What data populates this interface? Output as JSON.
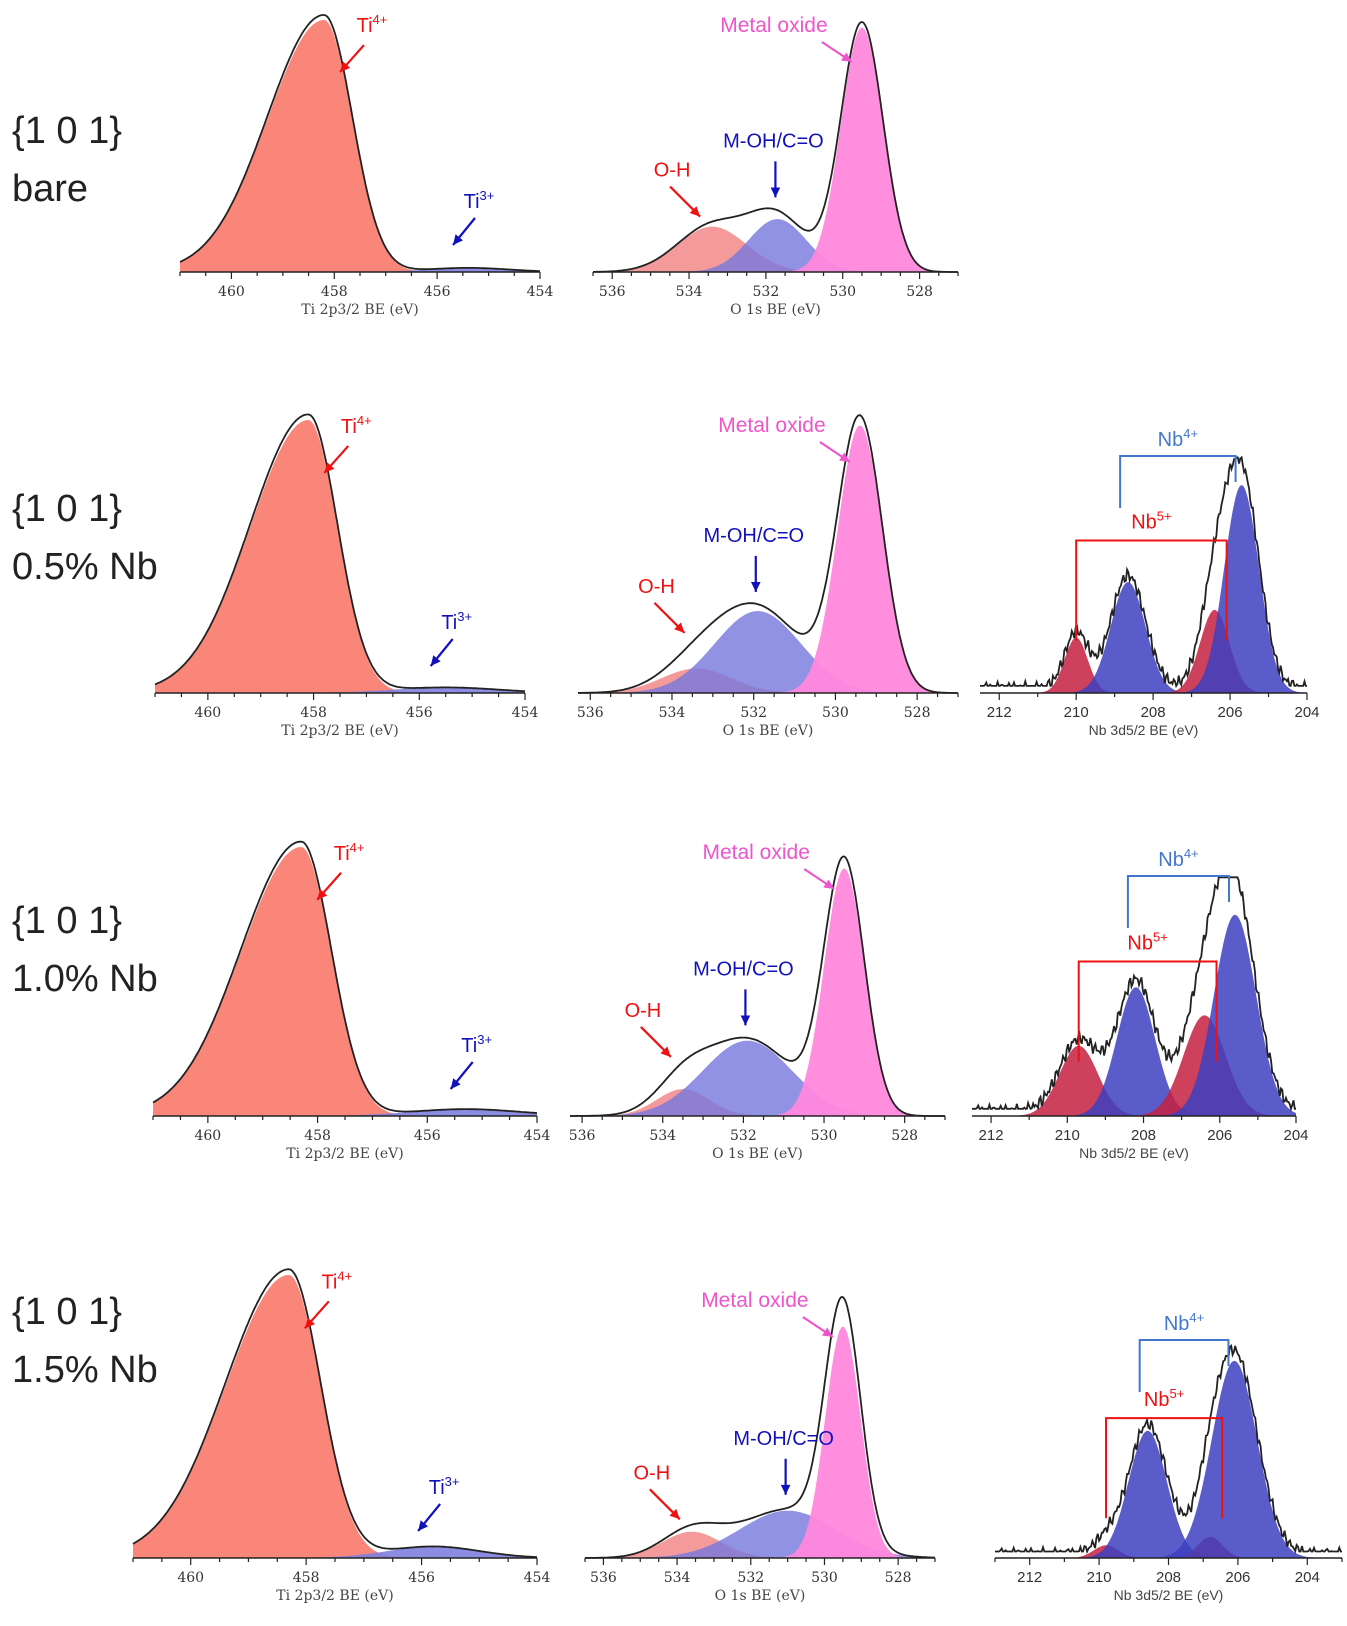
{
  "rows": [
    {
      "facet": "{1 0 1}",
      "sample": "bare"
    },
    {
      "facet": "{1 0 1}",
      "sample": "0.5% Nb"
    },
    {
      "facet": "{1 0 1}",
      "sample": "1.0%  Nb"
    },
    {
      "facet": "{1 0 1}",
      "sample": "1.5% Nb"
    }
  ],
  "colors": {
    "ti4": "#fa8072",
    "ti3": "#8080e0",
    "oh": "#f07878",
    "moh": "#7777dd",
    "metal": "#ff88dd",
    "nb5": "#c52040",
    "nb4": "#3c40c0",
    "envelope": "#222222",
    "label_red": "#ee1111",
    "label_blue": "#1111bb",
    "label_pink": "#ee55cc",
    "bracket_blue": "#4477cc"
  },
  "chart_data": [
    {
      "type": "area",
      "panel": "Ti 2p3/2 bare",
      "xlabel": "Ti 2p3/2  BE (eV)",
      "xlim": [
        461,
        454
      ],
      "xticks": [
        460,
        458,
        456,
        454
      ],
      "components": [
        {
          "name": "Ti⁴⁺",
          "center": 458.2,
          "width": 0.55,
          "height": 1.0,
          "tail": 1.1
        },
        {
          "name": "Ti³⁺",
          "center": 455.4,
          "width": 0.8,
          "height": 0.016
        }
      ],
      "annotations": [
        {
          "base": "Ti",
          "sup": "4+",
          "color": "label_red"
        },
        {
          "base": "Ti",
          "sup": "3+",
          "color": "label_blue"
        }
      ]
    },
    {
      "type": "area",
      "panel": "O 1s bare",
      "xlabel": "O 1s  BE (eV)",
      "xlim": [
        536.5,
        527
      ],
      "xticks": [
        536,
        534,
        532,
        530,
        528
      ],
      "components": [
        {
          "name": "O-H",
          "center": 533.4,
          "width": 0.9,
          "height": 0.18
        },
        {
          "name": "M-OH/C=O",
          "center": 531.7,
          "width": 0.75,
          "height": 0.21
        },
        {
          "name": "Metal oxide",
          "center": 529.5,
          "width": 0.55,
          "height": 0.97
        }
      ],
      "annotations": [
        {
          "text": "Metal oxide",
          "color": "label_pink"
        },
        {
          "text": "M-OH/C=O",
          "color": "label_blue"
        },
        {
          "text": "O-H",
          "color": "label_red"
        }
      ]
    },
    {
      "type": "area",
      "panel": "Ti 2p3/2 0.5% Nb",
      "xlabel": "Ti 2p3/2  BE (eV)",
      "xlim": [
        461,
        454
      ],
      "xticks": [
        460,
        458,
        456,
        454
      ],
      "components": [
        {
          "name": "Ti⁴⁺",
          "center": 458.1,
          "width": 0.55,
          "height": 1.0,
          "tail": 1.1
        },
        {
          "name": "Ti³⁺",
          "center": 455.5,
          "width": 1.0,
          "height": 0.02
        }
      ],
      "annotations": [
        {
          "base": "Ti",
          "sup": "4+",
          "color": "label_red"
        },
        {
          "base": "Ti",
          "sup": "3+",
          "color": "label_blue"
        }
      ]
    },
    {
      "type": "area",
      "panel": "O 1s 0.5% Nb",
      "xlabel": "O 1s  BE (eV)",
      "xlim": [
        536.3,
        527
      ],
      "xticks": [
        536,
        534,
        532,
        530,
        528
      ],
      "components": [
        {
          "name": "O-H",
          "center": 533.4,
          "width": 0.85,
          "height": 0.09
        },
        {
          "name": "M-OH/C=O",
          "center": 531.9,
          "width": 1.05,
          "height": 0.3
        },
        {
          "name": "Metal oxide",
          "center": 529.4,
          "width": 0.55,
          "height": 0.98
        }
      ],
      "annotations": [
        {
          "text": "Metal oxide",
          "color": "label_pink"
        },
        {
          "text": "M-OH/C=O",
          "color": "label_blue"
        },
        {
          "text": "O-H",
          "color": "label_red"
        }
      ]
    },
    {
      "type": "area",
      "panel": "Nb 3d5/2 0.5% Nb",
      "xlabel": "Nb 3d5/2  BE (eV)",
      "xlim": [
        212.5,
        204
      ],
      "xticks": [
        212,
        210,
        208,
        206,
        204
      ],
      "components": [
        {
          "name": "Nb⁵⁺",
          "center": 210.0,
          "width": 0.3,
          "height": 0.24
        },
        {
          "name": "Nb⁴⁺",
          "center": 208.65,
          "width": 0.45,
          "height": 0.48
        },
        {
          "name": "Nb⁵⁺",
          "center": 206.4,
          "width": 0.38,
          "height": 0.36
        },
        {
          "name": "Nb⁴⁺",
          "center": 205.7,
          "width": 0.45,
          "height": 0.9
        }
      ],
      "annotations": [
        {
          "base": "Nb",
          "sup": "4+",
          "color": "bracket_blue"
        },
        {
          "base": "Nb",
          "sup": "5+",
          "color": "label_red"
        }
      ]
    },
    {
      "type": "area",
      "panel": "Ti 2p3/2 1.0% Nb",
      "xlabel": "Ti 2p3/2  BE (eV)",
      "xlim": [
        461,
        454
      ],
      "xticks": [
        460,
        458,
        456,
        454
      ],
      "components": [
        {
          "name": "Ti⁴⁺",
          "center": 458.3,
          "width": 0.55,
          "height": 1.0,
          "tail": 1.1
        },
        {
          "name": "Ti³⁺",
          "center": 455.3,
          "width": 1.0,
          "height": 0.025
        }
      ],
      "annotations": [
        {
          "base": "Ti",
          "sup": "4+",
          "color": "label_red"
        },
        {
          "base": "Ti",
          "sup": "3+",
          "color": "label_blue"
        }
      ]
    },
    {
      "type": "area",
      "panel": "O 1s 1.0% Nb",
      "xlabel": "O 1s  BE (eV)",
      "xlim": [
        536.3,
        527
      ],
      "xticks": [
        536,
        534,
        532,
        530,
        528
      ],
      "components": [
        {
          "name": "O-H",
          "center": 533.5,
          "width": 0.65,
          "height": 0.1
        },
        {
          "name": "M-OH/C=O",
          "center": 531.9,
          "width": 1.1,
          "height": 0.28
        },
        {
          "name": "Metal oxide",
          "center": 529.5,
          "width": 0.5,
          "height": 0.92
        }
      ],
      "annotations": [
        {
          "text": "Metal oxide",
          "color": "label_pink"
        },
        {
          "text": "M-OH/C=O",
          "color": "label_blue"
        },
        {
          "text": "O-H",
          "color": "label_red"
        }
      ]
    },
    {
      "type": "area",
      "panel": "Nb 3d5/2 1.0% Nb",
      "xlabel": "Nb 3d5/2  BE (eV)",
      "xlim": [
        212.5,
        204
      ],
      "xticks": [
        212,
        210,
        208,
        206,
        204
      ],
      "components": [
        {
          "name": "Nb⁵⁺",
          "center": 209.7,
          "width": 0.5,
          "height": 0.3
        },
        {
          "name": "Nb⁴⁺",
          "center": 208.2,
          "width": 0.5,
          "height": 0.55
        },
        {
          "name": "Nb⁵⁺",
          "center": 206.4,
          "width": 0.55,
          "height": 0.43
        },
        {
          "name": "Nb⁴⁺",
          "center": 205.6,
          "width": 0.55,
          "height": 0.86
        }
      ],
      "annotations": [
        {
          "base": "Nb",
          "sup": "4+",
          "color": "bracket_blue"
        },
        {
          "base": "Nb",
          "sup": "5+",
          "color": "label_red"
        }
      ]
    },
    {
      "type": "area",
      "panel": "Ti 2p3/2 1.5% Nb",
      "xlabel": "Ti 2p3/2  BE (eV)",
      "xlim": [
        461,
        454
      ],
      "xticks": [
        460,
        458,
        456,
        454
      ],
      "components": [
        {
          "name": "Ti⁴⁺",
          "center": 458.3,
          "width": 0.55,
          "height": 1.0,
          "tail": 1.1
        },
        {
          "name": "Ti³⁺",
          "center": 455.8,
          "width": 0.8,
          "height": 0.04
        }
      ],
      "annotations": [
        {
          "base": "Ti",
          "sup": "4+",
          "color": "label_red"
        },
        {
          "base": "Ti",
          "sup": "3+",
          "color": "label_blue"
        }
      ]
    },
    {
      "type": "area",
      "panel": "O 1s 1.5% Nb",
      "xlabel": "O 1s  BE (eV)",
      "xlim": [
        536.5,
        527
      ],
      "xticks": [
        536,
        534,
        532,
        530,
        528
      ],
      "components": [
        {
          "name": "O-H",
          "center": 533.6,
          "width": 0.8,
          "height": 0.1
        },
        {
          "name": "M-OH/C=O",
          "center": 531.0,
          "width": 1.3,
          "height": 0.18
        },
        {
          "name": "Metal oxide",
          "center": 529.5,
          "width": 0.48,
          "height": 0.88
        }
      ],
      "annotations": [
        {
          "text": "Metal oxide",
          "color": "label_pink"
        },
        {
          "text": "M-OH/C=O",
          "color": "label_blue"
        },
        {
          "text": "O-H",
          "color": "label_red"
        }
      ]
    },
    {
      "type": "area",
      "panel": "Nb 3d5/2 1.5% Nb",
      "xlabel": "Nb 3d5/2  BE (eV)",
      "xlim": [
        213,
        203
      ],
      "xticks": [
        212,
        210,
        208,
        206,
        204
      ],
      "components": [
        {
          "name": "Nb⁵⁺",
          "center": 209.8,
          "width": 0.35,
          "height": 0.06
        },
        {
          "name": "Nb⁴⁺",
          "center": 208.6,
          "width": 0.55,
          "height": 0.6
        },
        {
          "name": "Nb⁵⁺",
          "center": 206.8,
          "width": 0.35,
          "height": 0.1
        },
        {
          "name": "Nb⁴⁺",
          "center": 206.1,
          "width": 0.65,
          "height": 0.93
        }
      ],
      "annotations": [
        {
          "base": "Nb",
          "sup": "4+",
          "color": "bracket_blue"
        },
        {
          "base": "Nb",
          "sup": "5+",
          "color": "label_red"
        }
      ]
    }
  ]
}
